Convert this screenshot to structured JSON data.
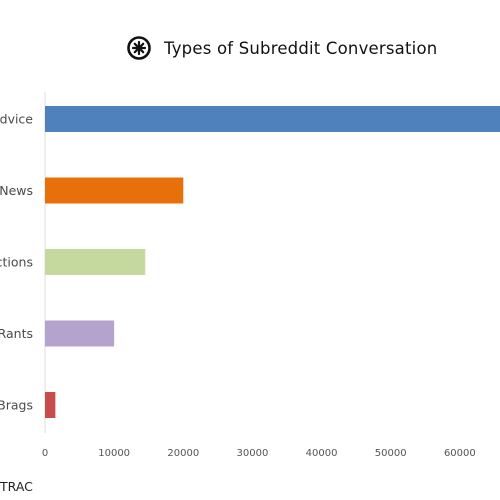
{
  "chart_data": {
    "type": "bar",
    "orientation": "horizontal",
    "title": "Types of Subreddit Conversation",
    "categories": [
      "Advice",
      "News",
      "Reactions",
      "Rants",
      "Brags"
    ],
    "values": [
      67000,
      20000,
      14500,
      10000,
      1500
    ],
    "colors": [
      "#4f81bd",
      "#e8700a",
      "#c5d99e",
      "#b4a3cd",
      "#c94c4c"
    ],
    "xlim": [
      0,
      70000
    ],
    "xticks": [
      0,
      10000,
      20000,
      30000,
      40000,
      50000,
      60000
    ],
    "xlabel": "",
    "ylabel": "",
    "grid": false,
    "legend": "none"
  },
  "branding": {
    "icon": "compass-logo-icon",
    "source_text": "TRAC"
  }
}
